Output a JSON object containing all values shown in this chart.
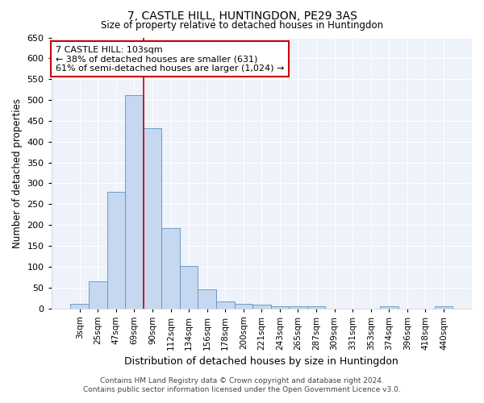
{
  "title": "7, CASTLE HILL, HUNTINGDON, PE29 3AS",
  "subtitle": "Size of property relative to detached houses in Huntingdon",
  "xlabel": "Distribution of detached houses by size in Huntingdon",
  "ylabel": "Number of detached properties",
  "footnote1": "Contains HM Land Registry data © Crown copyright and database right 2024.",
  "footnote2": "Contains public sector information licensed under the Open Government Licence v3.0.",
  "bar_labels": [
    "3sqm",
    "25sqm",
    "47sqm",
    "69sqm",
    "90sqm",
    "112sqm",
    "134sqm",
    "156sqm",
    "178sqm",
    "200sqm",
    "221sqm",
    "243sqm",
    "265sqm",
    "287sqm",
    "309sqm",
    "331sqm",
    "353sqm",
    "374sqm",
    "396sqm",
    "418sqm",
    "440sqm"
  ],
  "bar_values": [
    10,
    65,
    280,
    512,
    432,
    192,
    102,
    46,
    16,
    11,
    8,
    5,
    5,
    5,
    0,
    0,
    0,
    5,
    0,
    0,
    5
  ],
  "bar_color": "#c5d8f0",
  "bar_edge_color": "#6090c0",
  "background_color": "#eef2fa",
  "grid_color": "#ffffff",
  "annotation_box_text": "7 CASTLE HILL: 103sqm\n← 38% of detached houses are smaller (631)\n61% of semi-detached houses are larger (1,024) →",
  "vline_x_index": 3,
  "vline_color": "#cc0000",
  "annotation_box_color": "#ffffff",
  "annotation_box_edge_color": "#cc0000",
  "ylim": [
    0,
    650
  ],
  "yticks": [
    0,
    50,
    100,
    150,
    200,
    250,
    300,
    350,
    400,
    450,
    500,
    550,
    600,
    650
  ]
}
